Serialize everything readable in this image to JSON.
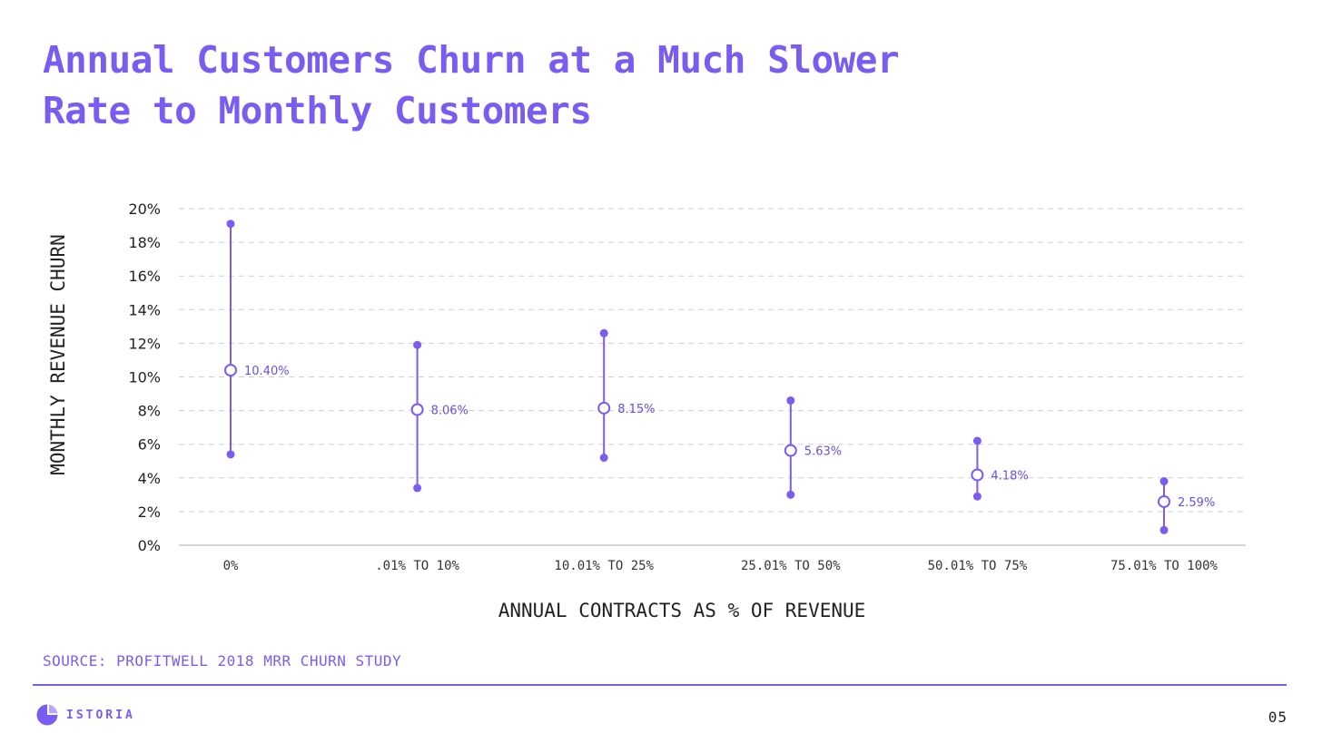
{
  "title": {
    "line1": "Annual Customers Churn at a Much Slower",
    "line2": "Rate to Monthly Customers"
  },
  "source": "SOURCE: PROFITWELL 2018 MRR CHURN STUDY",
  "brand": {
    "name": "ISTORIA",
    "logo_icon": "pie-chart-icon",
    "color": "#7b5cf0"
  },
  "page_number": "05",
  "chart_data": {
    "type": "scatter",
    "title": "",
    "xlabel": "ANNUAL CONTRACTS AS % OF REVENUE",
    "ylabel": "MONTHLY REVENUE CHURN",
    "categories": [
      "0%",
      ".01% TO 10%",
      "10.01% TO 25%",
      "25.01% TO 50%",
      "50.01% TO 75%",
      "75.01% TO 100%"
    ],
    "series": [
      {
        "values": [
          10.4,
          8.06,
          8.15,
          5.63,
          4.18,
          2.59
        ],
        "labels": [
          "10.40%",
          "8.06%",
          "8.15%",
          "5.63%",
          "4.18%",
          "2.59%"
        ],
        "high": [
          19.1,
          11.9,
          12.6,
          8.6,
          6.2,
          3.8
        ],
        "low": [
          5.4,
          3.4,
          5.2,
          3.0,
          2.9,
          0.9
        ]
      }
    ],
    "ylim": [
      0,
      20
    ],
    "y_ticks": [
      "0%",
      "2%",
      "4%",
      "6%",
      "8%",
      "10%",
      "12%",
      "14%",
      "16%",
      "18%",
      "20%"
    ],
    "grid": true,
    "legend": "none",
    "colors": {
      "accent": "#7b5cf0",
      "grid": "#cfcfcf",
      "axis": "#bdbdbd"
    }
  }
}
